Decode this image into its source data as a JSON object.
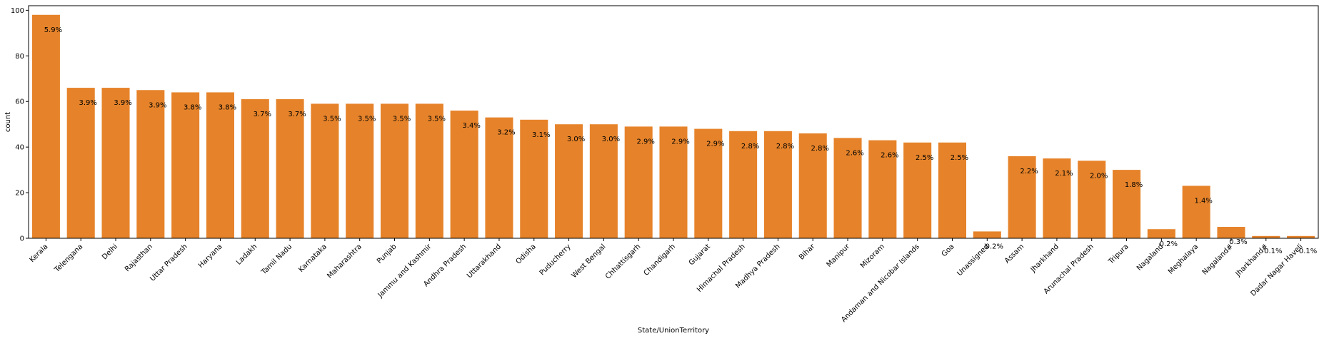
{
  "chart_data": {
    "type": "bar",
    "xlabel": "State/UnionTerritory",
    "ylabel": "count",
    "ylim": [
      0,
      102
    ],
    "yticks": [
      0,
      20,
      40,
      60,
      80,
      100
    ],
    "bar_color": "#e6832a",
    "grid": false,
    "categories": [
      "Kerala",
      "Telengana",
      "Delhi",
      "Rajasthan",
      "Uttar Pradesh",
      "Haryana",
      "Ladakh",
      "Tamil Nadu",
      "Karnataka",
      "Maharashtra",
      "Punjab",
      "Jammu and Kashmir",
      "Andhra Pradesh",
      "Uttarakhand",
      "Odisha",
      "Puducherry",
      "West Bengal",
      "Chhattisgarh",
      "Chandigarh",
      "Gujarat",
      "Himachal Pradesh",
      "Madhya Pradesh",
      "Bihar",
      "Manipur",
      "Mizoram",
      "Andaman and Nicobar Islands",
      "Goa",
      "Unassigned",
      "Assam",
      "Jharkhand",
      "Arunachal Pradesh",
      "Tripura",
      "Nagaland",
      "Meghalaya",
      "Nagaland#",
      "Jharkhand#",
      "Dadar Nagar Haveli"
    ],
    "values": [
      98,
      66,
      66,
      65,
      64,
      64,
      61,
      61,
      59,
      59,
      59,
      59,
      56,
      53,
      52,
      50,
      50,
      49,
      49,
      48,
      47,
      47,
      46,
      44,
      43,
      42,
      42,
      3,
      36,
      35,
      34,
      30,
      4,
      23,
      5,
      1,
      1
    ],
    "percent_labels": [
      "5.9%",
      "3.9%",
      "3.9%",
      "3.9%",
      "3.8%",
      "3.8%",
      "3.7%",
      "3.7%",
      "3.5%",
      "3.5%",
      "3.5%",
      "3.5%",
      "3.4%",
      "3.2%",
      "3.1%",
      "3.0%",
      "3.0%",
      "2.9%",
      "2.9%",
      "2.9%",
      "2.8%",
      "2.8%",
      "2.8%",
      "2.6%",
      "2.6%",
      "2.5%",
      "2.5%",
      "0.2%",
      "2.2%",
      "2.1%",
      "2.0%",
      "1.8%",
      "0.2%",
      "1.4%",
      "0.3%",
      "0.1%",
      "0.1%"
    ]
  }
}
